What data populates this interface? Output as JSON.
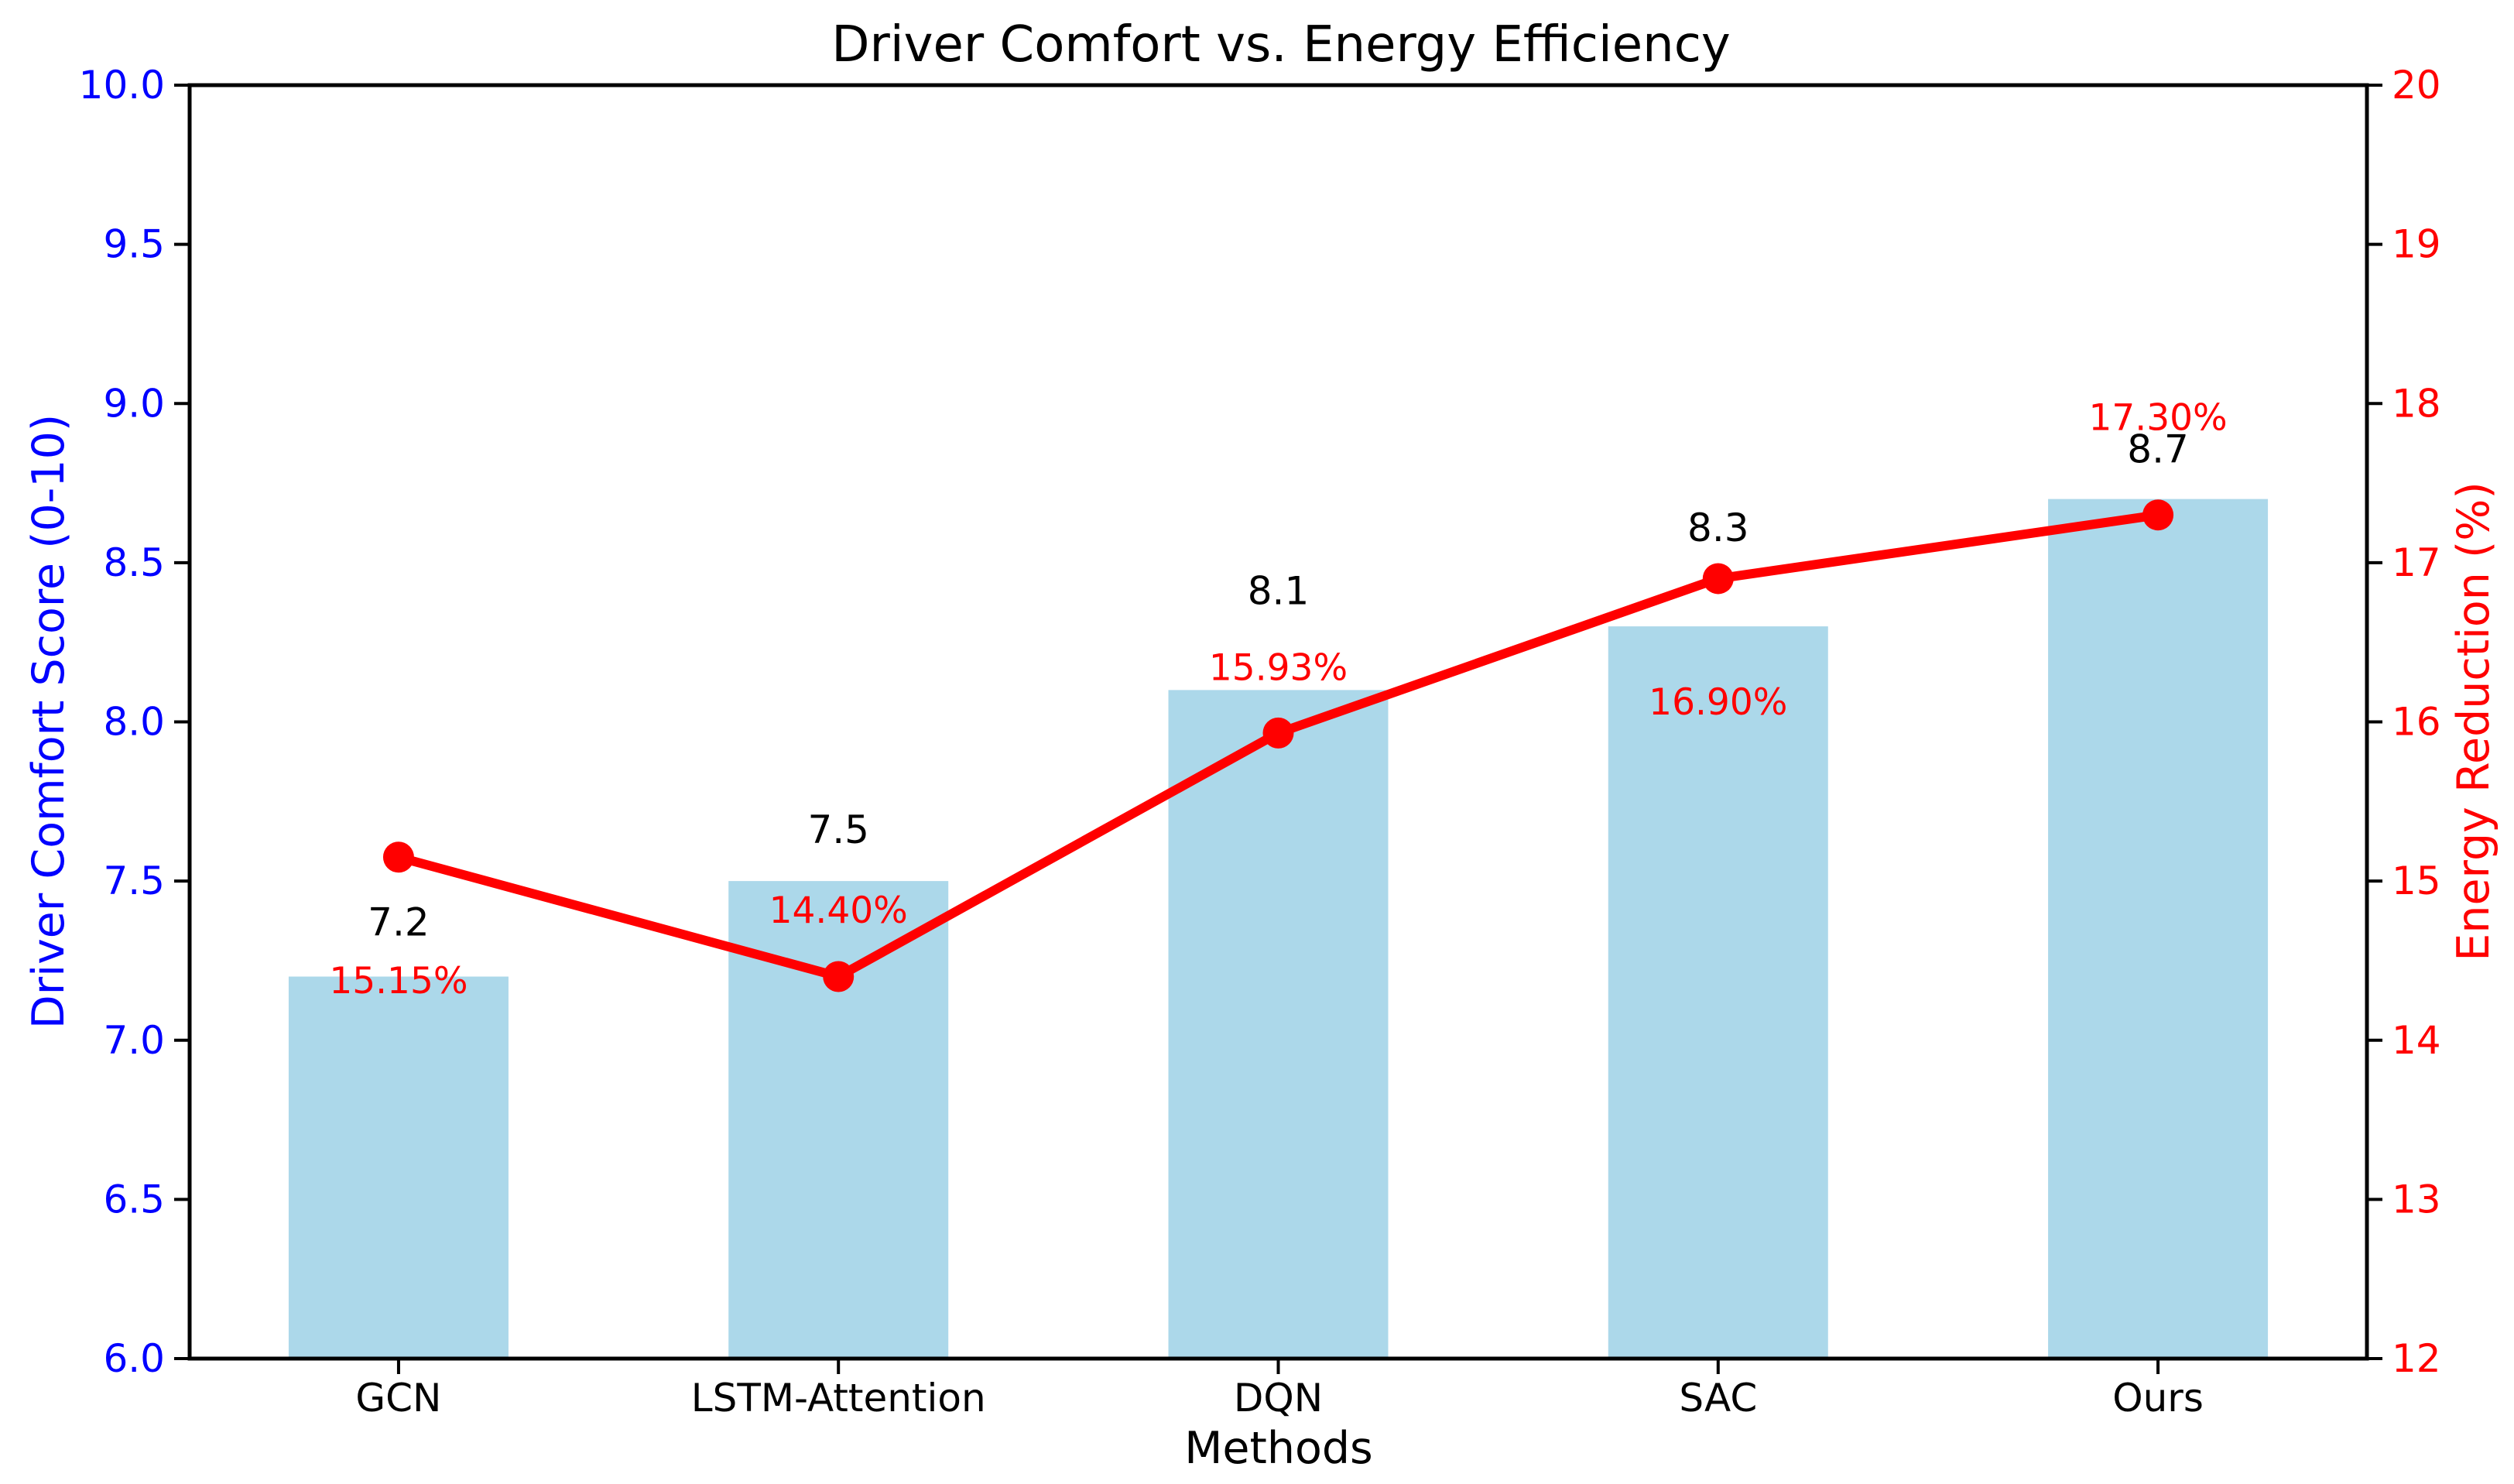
{
  "chart_data": {
    "type": "bar+line",
    "title": "Driver Comfort vs. Energy Efficiency",
    "xlabel": "Methods",
    "categories": [
      "GCN",
      "LSTM-Attention",
      "DQN",
      "SAC",
      "Ours"
    ],
    "series": [
      {
        "name": "Driver Comfort Score",
        "type": "bar",
        "axis": "left",
        "color": "#ACD8EA",
        "values": [
          7.2,
          7.5,
          8.1,
          8.3,
          8.7
        ],
        "labels": [
          "7.2",
          "7.5",
          "8.1",
          "8.3",
          "8.7"
        ],
        "label_color": "#000000"
      },
      {
        "name": "Energy Reduction",
        "type": "line",
        "axis": "right",
        "color": "#ff0000",
        "values": [
          15.15,
          14.4,
          15.93,
          16.9,
          17.3
        ],
        "labels": [
          "15.15%",
          "14.40%",
          "15.93%",
          "16.90%",
          "17.30%"
        ],
        "label_color": "#ff0000"
      }
    ],
    "left_axis": {
      "label": "Driver Comfort Score (0-10)",
      "color": "#0000ff",
      "min": 6.0,
      "max": 10.0,
      "ticks": [
        "6.0",
        "6.5",
        "7.0",
        "7.5",
        "8.0",
        "8.5",
        "9.0",
        "9.5",
        "10.0"
      ]
    },
    "right_axis": {
      "label": "Energy Reduction (%)",
      "color": "#ff0000",
      "min": 12,
      "max": 20,
      "ticks": [
        "12",
        "13",
        "14",
        "15",
        "16",
        "17",
        "18",
        "19",
        "20"
      ]
    },
    "grid": false,
    "legend": "none",
    "spine_color": "#000000"
  }
}
